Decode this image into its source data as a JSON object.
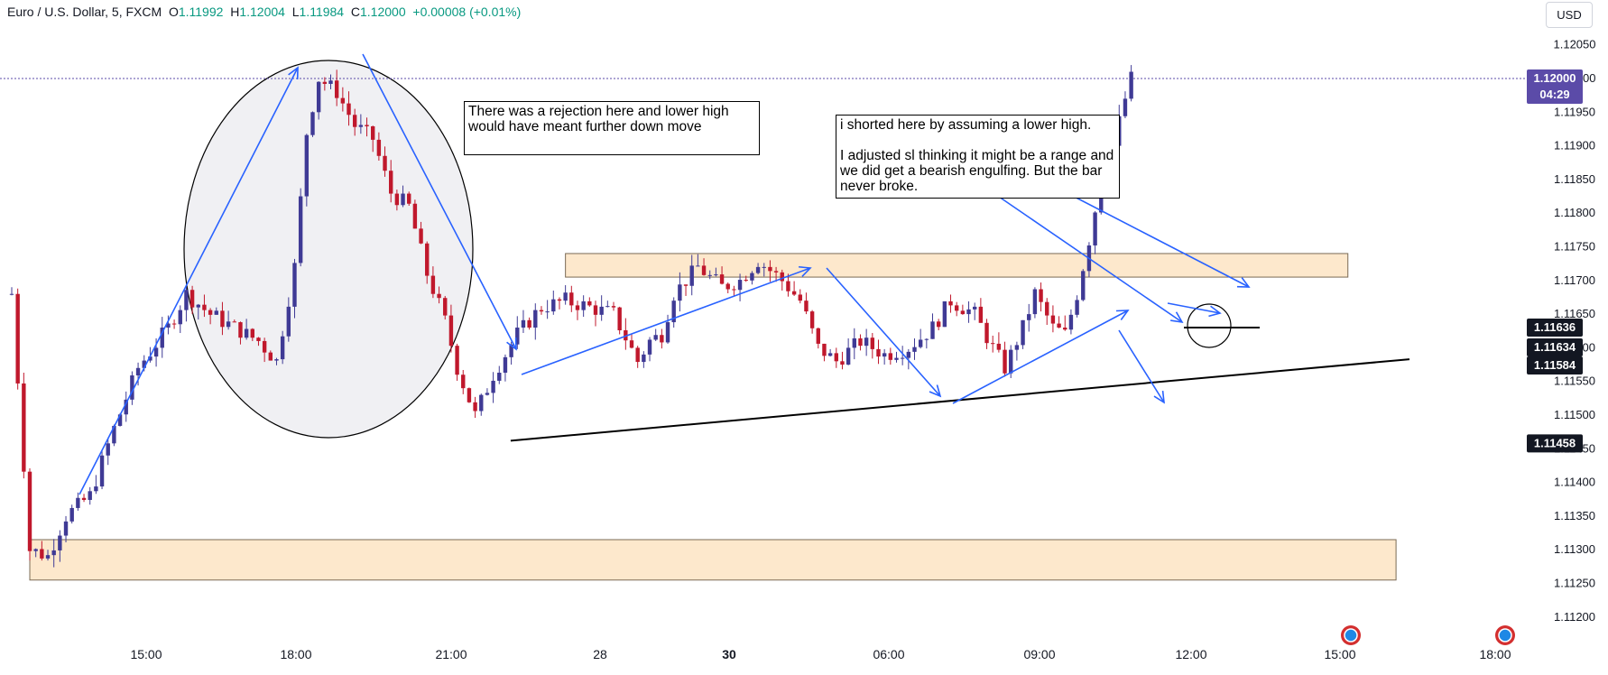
{
  "header": {
    "symbol": "Euro / U.S. Dollar, 5, FXCM",
    "o_label": "O",
    "o": "1.11992",
    "h_label": "H",
    "h": "1.12004",
    "l_label": "L",
    "l": "1.11984",
    "c_label": "C",
    "c": "1.12000",
    "change": "+0.00008 (+0.01%)"
  },
  "currency": "USD",
  "notes": [
    "There was a rejection here and lower high would have meant further down move",
    "i shorted here by assuming a lower high.\n\nI adjusted sl thinking it might be a range and we did get a bearish engulfing. But the bar never broke."
  ],
  "price_tags": [
    {
      "label": "1.12000",
      "sub": "04:29",
      "value": 1.12,
      "color": "#5b4ba8"
    },
    {
      "label": "1.11636",
      "value": 1.11636,
      "color": "#131722"
    },
    {
      "label": "1.11634",
      "value": 1.11634,
      "color": "#131722"
    },
    {
      "label": "1.11584",
      "value": 1.11584,
      "color": "#131722"
    },
    {
      "label": "1.11458",
      "value": 1.11458,
      "color": "#131722"
    }
  ],
  "chart_data": {
    "type": "candlestick",
    "title": "Euro / U.S. Dollar, 5, FXCM",
    "y_ticks": [
      "1.11200",
      "1.11250",
      "1.11300",
      "1.11350",
      "1.11400",
      "1.11450",
      "1.11500",
      "1.11550",
      "1.11600",
      "1.11650",
      "1.11700",
      "1.11750",
      "1.11800",
      "1.11850",
      "1.11900",
      "1.11950",
      "1.12000",
      "1.12050"
    ],
    "x_ticks": [
      "15:00",
      "18:00",
      "21:00",
      "28",
      "30",
      "06:00",
      "09:00",
      "12:00",
      "15:00",
      "18:00"
    ],
    "x_ticks_bold": [
      "30"
    ],
    "ylim": [
      1.1118,
      1.1207
    ],
    "up_color": "#3f3a95",
    "down_color": "#c0182c",
    "zone_color": "#fde8cc",
    "arrow_color": "#2962ff",
    "zones": [
      {
        "t0": 3,
        "t1": 230,
        "low": 1.11255,
        "high": 1.11315
      },
      {
        "t0": 92,
        "t1": 222,
        "low": 1.11705,
        "high": 1.1174
      }
    ],
    "trendline": {
      "t0": 73,
      "p0": 1.11462,
      "t1": 230,
      "p1": 1.11583
    },
    "candles": []
  }
}
